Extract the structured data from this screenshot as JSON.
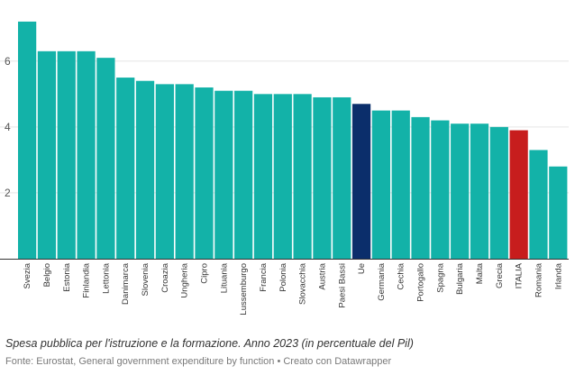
{
  "chart_data": {
    "type": "bar",
    "caption": "Spesa pubblica per l'istruzione e la formazione. Anno 2023 (in percentuale del Pil)",
    "source": "Fonte: Eurostat, General government expenditure by function • Creato con Datawrapper",
    "categories": [
      "Svezia",
      "Belgio",
      "Estonia",
      "Finlandia",
      "Lettonia",
      "Danimarca",
      "Slovenia",
      "Croazia",
      "Ungheria",
      "Cipro",
      "Lituania",
      "Lussemburgo",
      "Francia",
      "Polonia",
      "Slovacchia",
      "Austria",
      "Paesi Bassi",
      "Ue",
      "Germania",
      "Cechia",
      "Portogallo",
      "Spagna",
      "Bulgaria",
      "Malta",
      "Grecia",
      "ITALIA",
      "Romania",
      "Irlanda"
    ],
    "values": [
      7.2,
      6.3,
      6.3,
      6.3,
      6.1,
      5.5,
      5.4,
      5.3,
      5.3,
      5.2,
      5.1,
      5.1,
      5.0,
      5.0,
      5.0,
      4.9,
      4.9,
      4.7,
      4.5,
      4.5,
      4.3,
      4.2,
      4.1,
      4.1,
      4.0,
      3.9,
      3.3,
      2.8
    ],
    "highlight": {
      "Ue": "#0b2e6b",
      "ITALIA": "#c71d1d"
    },
    "bar_color": "#13b2a8",
    "gridline_color": "#e5e5e5",
    "ylim": [
      0,
      7.5
    ],
    "yticks": [
      2,
      4,
      6
    ],
    "xlabel": "",
    "ylabel": ""
  }
}
